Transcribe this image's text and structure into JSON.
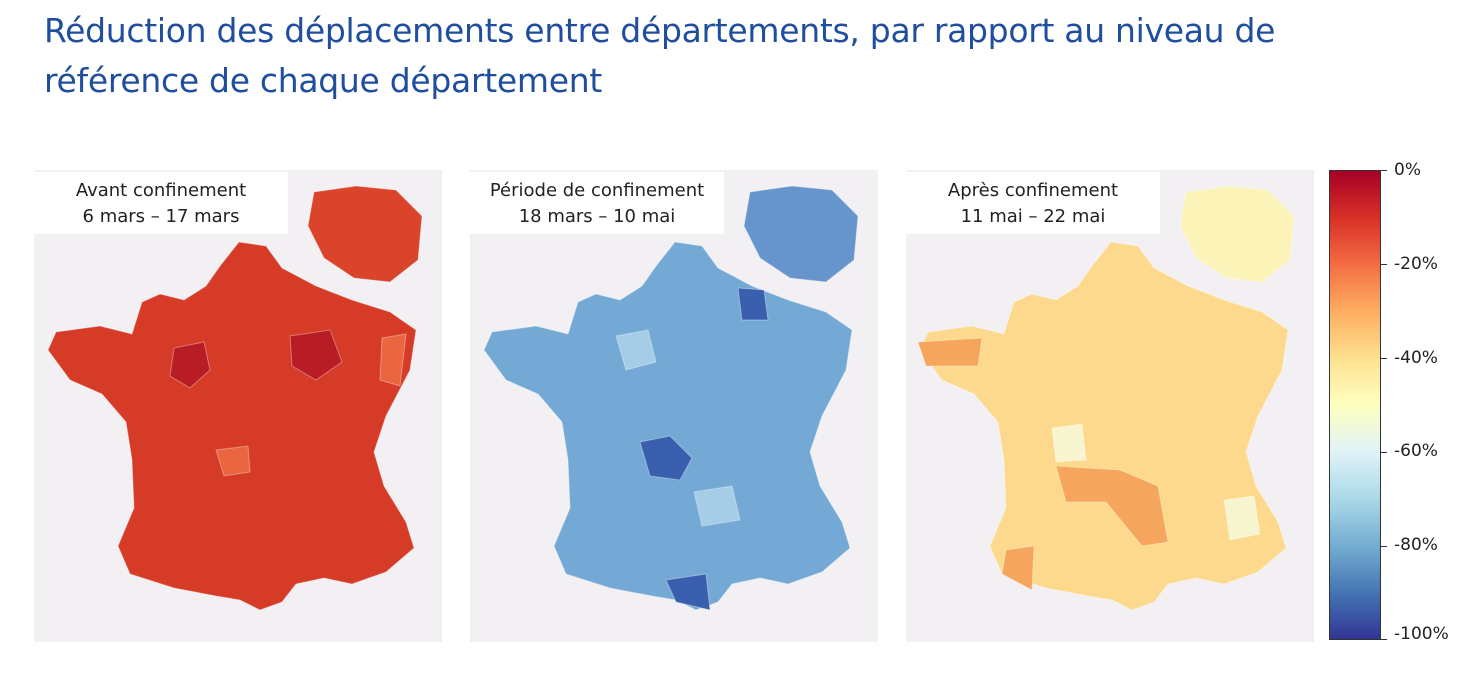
{
  "title": "Réduction des déplacements entre départements, par rapport au niveau de référence de chaque département",
  "panels": [
    {
      "period": "Avant confinement",
      "dates": "6 mars – 17 mars",
      "colors": {
        "base": "#d63b28",
        "ile": "#d9442b",
        "dark": "#b81c24",
        "light": "#ea6640"
      }
    },
    {
      "period": "Période de confinement",
      "dates": "18 mars – 10 mai",
      "colors": {
        "base": "#74a9d6",
        "ile": "#6595cc",
        "dark": "#3a5fae",
        "light": "#a6cde6"
      }
    },
    {
      "period": "Après confinement",
      "dates": "11 mai – 22 mai",
      "colors": {
        "base": "#fcd98c",
        "ile": "#fbf3b8",
        "dark": "#f5a55c",
        "light": "#f7f5d0"
      }
    }
  ],
  "legend": {
    "ticks": [
      "0%",
      "-20%",
      "-40%",
      "-60%",
      "-80%",
      "-100%"
    ],
    "range": [
      0,
      -100
    ],
    "colors": [
      "#a50026",
      "#d73027",
      "#f46d43",
      "#fdae61",
      "#fee090",
      "#ffffbf",
      "#e0f3f8",
      "#abd9e9",
      "#74add1",
      "#4575b4",
      "#313695"
    ]
  }
}
